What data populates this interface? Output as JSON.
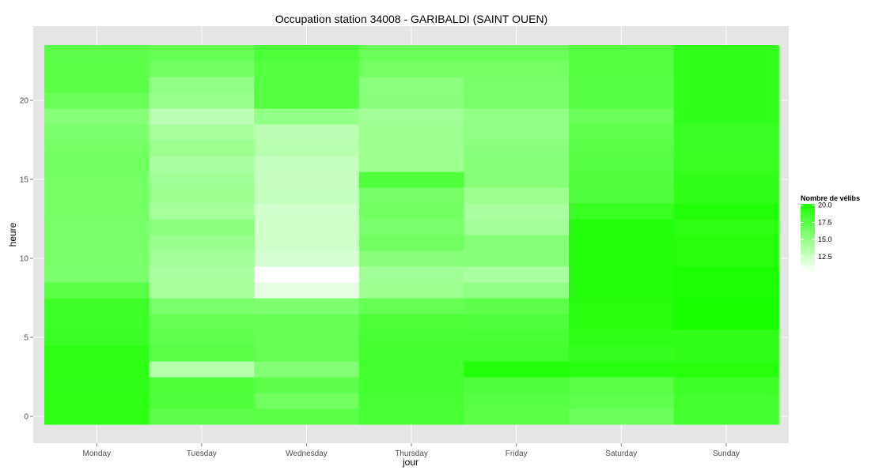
{
  "chart_data": {
    "type": "heatmap",
    "title": "Occupation station 34008 - GARIBALDI (SAINT OUEN)",
    "xlabel": "jour",
    "ylabel": "heure",
    "x": [
      "Monday",
      "Tuesday",
      "Wednesday",
      "Thursday",
      "Friday",
      "Saturday",
      "Sunday"
    ],
    "y": [
      0,
      1,
      2,
      3,
      4,
      5,
      6,
      7,
      8,
      9,
      10,
      11,
      12,
      13,
      14,
      15,
      16,
      17,
      18,
      19,
      20,
      21,
      22,
      23
    ],
    "y_ticks": [
      0,
      5,
      10,
      15,
      20
    ],
    "y_tick_labels": [
      "0",
      "5",
      "10",
      "15",
      "20"
    ],
    "values": [
      [
        19.4,
        17.3,
        17.4,
        18.2,
        17.4,
        16.7,
        18.4
      ],
      [
        19.4,
        17.9,
        16.5,
        18.2,
        17.6,
        17.2,
        18.4
      ],
      [
        19.2,
        18.0,
        17.3,
        18.4,
        17.9,
        17.5,
        18.7
      ],
      [
        19.4,
        13.5,
        15.7,
        18.4,
        19.8,
        19.5,
        19.6
      ],
      [
        19.4,
        17.5,
        17.0,
        18.4,
        18.4,
        19.0,
        19.2
      ],
      [
        18.8,
        17.2,
        16.9,
        18.2,
        18.2,
        19.3,
        19.2
      ],
      [
        18.6,
        17.0,
        16.9,
        18.0,
        17.9,
        19.6,
        20.2
      ],
      [
        18.6,
        16.0,
        15.9,
        17.0,
        17.3,
        19.6,
        20.2
      ],
      [
        17.5,
        14.2,
        11.4,
        14.6,
        15.1,
        19.8,
        20.1
      ],
      [
        16.0,
        14.0,
        10.3,
        14.4,
        14.0,
        19.8,
        20.1
      ],
      [
        16.1,
        14.3,
        12.1,
        15.4,
        15.6,
        19.8,
        19.6
      ],
      [
        16.1,
        14.7,
        12.4,
        16.4,
        15.6,
        19.8,
        19.6
      ],
      [
        16.1,
        15.3,
        12.4,
        16.0,
        14.3,
        19.8,
        19.4
      ],
      [
        16.3,
        14.2,
        12.3,
        16.4,
        14.0,
        18.9,
        19.8
      ],
      [
        16.3,
        14.6,
        12.8,
        16.2,
        14.6,
        17.9,
        19.2
      ],
      [
        16.3,
        14.4,
        12.7,
        17.9,
        15.5,
        17.8,
        19.2
      ],
      [
        16.5,
        14.0,
        12.8,
        14.6,
        15.5,
        17.6,
        18.9
      ],
      [
        16.3,
        14.6,
        13.4,
        14.6,
        15.4,
        17.5,
        18.8
      ],
      [
        16.0,
        14.1,
        13.2,
        14.6,
        15.1,
        17.2,
        18.8
      ],
      [
        15.5,
        13.2,
        15.0,
        14.3,
        15.1,
        16.8,
        19.1
      ],
      [
        16.8,
        14.8,
        17.7,
        15.4,
        16.1,
        17.6,
        19.1
      ],
      [
        17.4,
        15.1,
        17.7,
        15.3,
        16.1,
        17.6,
        19.1
      ],
      [
        17.4,
        16.4,
        17.7,
        16.3,
        16.3,
        17.7,
        19.1
      ],
      [
        17.3,
        16.9,
        18.0,
        16.7,
        16.7,
        17.7,
        19.1
      ]
    ],
    "value_range": [
      10.3,
      20.2
    ],
    "color_low": "#ffffff",
    "color_high": "#1aff00",
    "panel_background": "#e5e5e5",
    "grid": true,
    "legend": {
      "title": "Nombre de vélibs",
      "placement": "right",
      "breaks": [
        20.0,
        17.5,
        15.0,
        12.5
      ],
      "labels": [
        "20.0",
        "17.5",
        "15.0",
        "12.5"
      ]
    }
  }
}
